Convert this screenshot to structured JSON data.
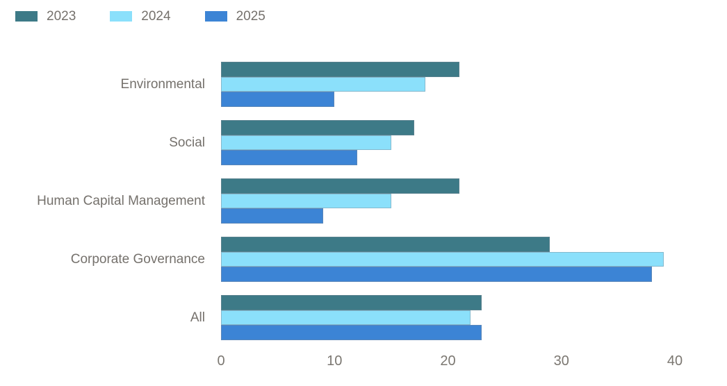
{
  "chart_data": {
    "type": "bar",
    "orientation": "horizontal",
    "title": "",
    "xlabel": "",
    "ylabel": "",
    "grid": "off",
    "legend_position": "top-left",
    "background": "#ffffff",
    "categories": [
      "Environmental",
      "Social",
      "Human Capital Management",
      "Corporate Governance",
      "All"
    ],
    "series": [
      {
        "name": "2023",
        "color": "#3d7a87",
        "values": [
          21,
          17,
          21,
          29,
          23
        ]
      },
      {
        "name": "2024",
        "color": "#8be0fb",
        "values": [
          18,
          15,
          15,
          39,
          22
        ]
      },
      {
        "name": "2025",
        "color": "#3c84d5",
        "values": [
          10,
          12,
          9,
          38,
          23
        ]
      }
    ],
    "xlim": [
      0,
      40
    ],
    "xticks": [
      0,
      10,
      20,
      30,
      40
    ]
  }
}
